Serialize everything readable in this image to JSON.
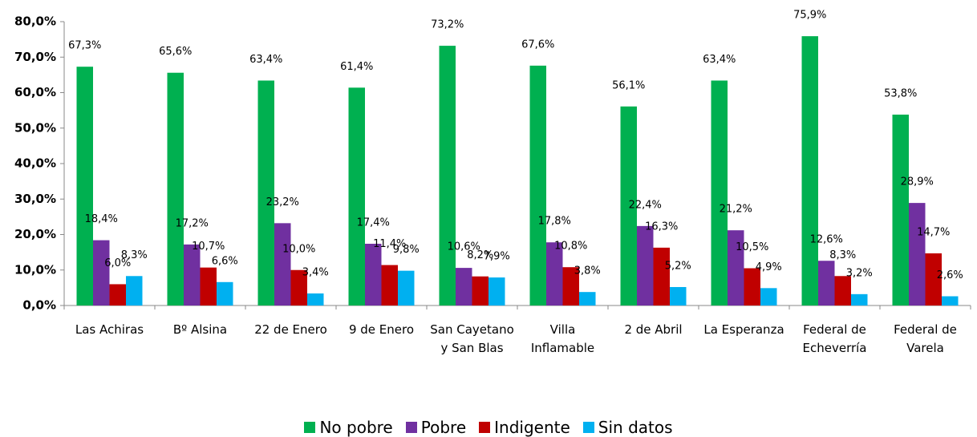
{
  "chart_data": {
    "type": "bar",
    "categories": [
      "Las Achiras",
      "Bº Alsina",
      "22 de Enero",
      "9 de Enero",
      "San Cayetano y San Blas",
      "Villa Inflamable",
      "2 de Abril",
      "La Esperanza",
      "Federal de Echeverría",
      "Federal de Varela"
    ],
    "series": [
      {
        "name": "No pobre",
        "color": "#00b050",
        "values": [
          67.3,
          65.6,
          63.4,
          61.4,
          73.2,
          67.6,
          56.1,
          63.4,
          75.9,
          53.8
        ],
        "value_labels": [
          "67,3%",
          "65,6%",
          "63,4%",
          "61,4%",
          "73,2%",
          "67,6%",
          "56,1%",
          "63,4%",
          "75,9%",
          "53,8%"
        ]
      },
      {
        "name": "Pobre",
        "color": "#7030a0",
        "values": [
          18.4,
          17.2,
          23.2,
          17.4,
          10.6,
          17.8,
          22.4,
          21.2,
          12.6,
          28.9
        ],
        "value_labels": [
          "18,4%",
          "17,2%",
          "23,2%",
          "17,4%",
          "10,6%",
          "17,8%",
          "22,4%",
          "21,2%",
          "12,6%",
          "28,9%"
        ]
      },
      {
        "name": "Indigente",
        "color": "#c00000",
        "values": [
          6.0,
          10.7,
          10.0,
          11.4,
          8.2,
          10.8,
          16.3,
          10.5,
          8.3,
          14.7
        ],
        "value_labels": [
          "6,0%",
          "10,7%",
          "10,0%",
          "11,4%",
          "8,2%",
          "10,8%",
          "16,3%",
          "10,5%",
          "8,3%",
          "14,7%"
        ]
      },
      {
        "name": "Sin datos",
        "color": "#00b0f0",
        "values": [
          8.3,
          6.6,
          3.4,
          9.8,
          7.9,
          3.8,
          5.2,
          4.9,
          3.2,
          2.6
        ],
        "value_labels": [
          "8,3%",
          "6,6%",
          "3,4%",
          "9,8%",
          "7,9%",
          "3,8%",
          "5,2%",
          "4,9%",
          "3,2%",
          "2,6%"
        ]
      }
    ],
    "ylim": [
      0,
      80
    ],
    "yticks": [
      {
        "value": 0,
        "label": "0,0%"
      },
      {
        "value": 10,
        "label": "10,0%"
      },
      {
        "value": 20,
        "label": "20,0%"
      },
      {
        "value": 30,
        "label": "30,0%"
      },
      {
        "value": 40,
        "label": "40,0%"
      },
      {
        "value": 50,
        "label": "50,0%"
      },
      {
        "value": 60,
        "label": "60,0%"
      },
      {
        "value": 70,
        "label": "70,0%"
      },
      {
        "value": 80,
        "label": "80,0%"
      }
    ],
    "grid": false,
    "legend": "bottom"
  }
}
